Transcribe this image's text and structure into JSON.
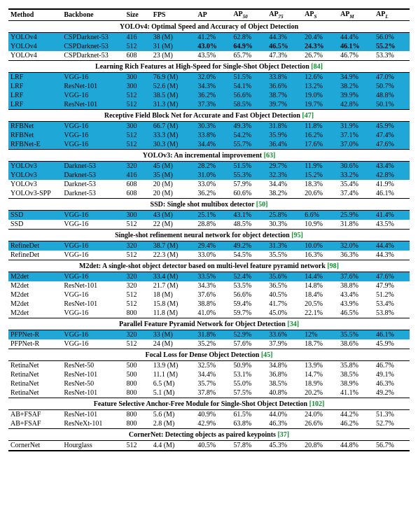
{
  "columns": [
    "Method",
    "Backbone",
    "Size",
    "FPS",
    "AP",
    "AP50",
    "AP75",
    "APS",
    "APM",
    "APL"
  ],
  "column_subscripts": [
    "",
    "",
    "",
    "",
    "",
    "50",
    "75",
    "S",
    "M",
    "L"
  ],
  "highlight_color": "#1fa7d8",
  "citation_color": "#0a922d",
  "sections": [
    {
      "title": "YOLOv4: Optimal Speed and Accuracy of Object Detection",
      "citation": "",
      "rows": [
        {
          "hl": true,
          "bold_cells": [],
          "cells": [
            "YOLOv4",
            "CSPDarknet-53",
            "416",
            "38 (M)",
            "41.2%",
            "62.8%",
            "44.3%",
            "20.4%",
            "44.4%",
            "56.0%"
          ]
        },
        {
          "hl": true,
          "bold_cells": [
            4,
            5,
            6,
            7,
            8,
            9
          ],
          "cells": [
            "YOLOv4",
            "CSPDarknet-53",
            "512",
            "31 (M)",
            "43.0%",
            "64.9%",
            "46.5%",
            "24.3%",
            "46.1%",
            "55.2%"
          ]
        },
        {
          "hl": false,
          "bold_cells": [],
          "cells": [
            "YOLOv4",
            "CSPDarknet-53",
            "608",
            "23 (M)",
            "43.5%",
            "65.7%",
            "47.3%",
            "26.7%",
            "46.7%",
            "53.3%"
          ]
        }
      ]
    },
    {
      "title": "Learning Rich Features at High-Speed for Single-Shot Object Detection",
      "citation": "[84]",
      "rows": [
        {
          "hl": true,
          "bold_cells": [],
          "cells": [
            "LRF",
            "VGG-16",
            "300",
            "76.9 (M)",
            "32.0%",
            "51.5%",
            "33.8%",
            "12.6%",
            "34.9%",
            "47.0%"
          ]
        },
        {
          "hl": true,
          "bold_cells": [],
          "cells": [
            "LRF",
            "ResNet-101",
            "300",
            "52.6 (M)",
            "34.3%",
            "54.1%",
            "36.6%",
            "13.2%",
            "38.2%",
            "50.7%"
          ]
        },
        {
          "hl": true,
          "bold_cells": [],
          "cells": [
            "LRF",
            "VGG-16",
            "512",
            "38.5 (M)",
            "36.2%",
            "56.6%",
            "38.7%",
            "19.0%",
            "39.9%",
            "48.8%"
          ]
        },
        {
          "hl": true,
          "bold_cells": [],
          "cells": [
            "LRF",
            "ResNet-101",
            "512",
            "31.3 (M)",
            "37.3%",
            "58.5%",
            "39.7%",
            "19.7%",
            "42.8%",
            "50.1%"
          ]
        }
      ]
    },
    {
      "title": "Receptive Field Block Net for Accurate and Fast Object Detection",
      "citation": "[47]",
      "rows": [
        {
          "hl": true,
          "bold_cells": [],
          "cells": [
            "RFBNet",
            "VGG-16",
            "300",
            "66.7 (M)",
            "30.3%",
            "49.3%",
            "31.8%",
            "11.8%",
            "31.9%",
            "45.9%"
          ]
        },
        {
          "hl": true,
          "bold_cells": [],
          "cells": [
            "RFBNet",
            "VGG-16",
            "512",
            "33.3 (M)",
            "33.8%",
            "54.2%",
            "35.9%",
            "16.2%",
            "37.1%",
            "47.4%"
          ]
        },
        {
          "hl": true,
          "bold_cells": [],
          "cells": [
            "RFBNet-E",
            "VGG-16",
            "512",
            "30.3 (M)",
            "34.4%",
            "55.7%",
            "36.4%",
            "17.6%",
            "37.0%",
            "47.6%"
          ]
        }
      ]
    },
    {
      "title": "YOLOv3: An incremental improvement",
      "citation": "[63]",
      "rows": [
        {
          "hl": true,
          "bold_cells": [],
          "cells": [
            "YOLOv3",
            "Darknet-53",
            "320",
            "45 (M)",
            "28.2%",
            "51.5%",
            "29.7%",
            "11.9%",
            "30.6%",
            "43.4%"
          ]
        },
        {
          "hl": true,
          "bold_cells": [],
          "cells": [
            "YOLOv3",
            "Darknet-53",
            "416",
            "35 (M)",
            "31.0%",
            "55.3%",
            "32.3%",
            "15.2%",
            "33.2%",
            "42.8%"
          ]
        },
        {
          "hl": false,
          "bold_cells": [],
          "cells": [
            "YOLOv3",
            "Darknet-53",
            "608",
            "20 (M)",
            "33.0%",
            "57.9%",
            "34.4%",
            "18.3%",
            "35.4%",
            "41.9%"
          ]
        },
        {
          "hl": false,
          "bold_cells": [],
          "cells": [
            "YOLOv3-SPP",
            "Darknet-53",
            "608",
            "20 (M)",
            "36.2%",
            "60.6%",
            "38.2%",
            "20.6%",
            "37.4%",
            "46.1%"
          ]
        }
      ]
    },
    {
      "title": "SSD: Single shot multibox detector",
      "citation": "[50]",
      "rows": [
        {
          "hl": true,
          "bold_cells": [],
          "cells": [
            "SSD",
            "VGG-16",
            "300",
            "43 (M)",
            "25.1%",
            "43.1%",
            "25.8%",
            "6.6%",
            "25.9%",
            "41.4%"
          ]
        },
        {
          "hl": false,
          "bold_cells": [],
          "cells": [
            "SSD",
            "VGG-16",
            "512",
            "22 (M)",
            "28.8%",
            "48.5%",
            "30.3%",
            "10.9%",
            "31.8%",
            "43.5%"
          ]
        }
      ]
    },
    {
      "title": "Single-shot refinement neural network for object detection",
      "citation": "[95]",
      "rows": [
        {
          "hl": true,
          "bold_cells": [],
          "cells": [
            "RefineDet",
            "VGG-16",
            "320",
            "38.7 (M)",
            "29.4%",
            "49.2%",
            "31.3%",
            "10.0%",
            "32.0%",
            "44.4%"
          ]
        },
        {
          "hl": false,
          "bold_cells": [],
          "cells": [
            "RefineDet",
            "VGG-16",
            "512",
            "22.3 (M)",
            "33.0%",
            "54.5%",
            "35.5%",
            "16.3%",
            "36.3%",
            "44.3%"
          ]
        }
      ]
    },
    {
      "title": "M2det: A single-shot object detector based on multi-level feature pyramid network",
      "citation": "[98]",
      "rows": [
        {
          "hl": true,
          "bold_cells": [],
          "cells": [
            "M2det",
            "VGG-16",
            "320",
            "33.4 (M)",
            "33.5%",
            "52.4%",
            "35.6%",
            "14.4%",
            "37.6%",
            "47.6%"
          ]
        },
        {
          "hl": false,
          "bold_cells": [],
          "cells": [
            "M2det",
            "ResNet-101",
            "320",
            "21.7 (M)",
            "34.3%",
            "53.5%",
            "36.5%",
            "14.8%",
            "38.8%",
            "47.9%"
          ]
        },
        {
          "hl": false,
          "bold_cells": [],
          "cells": [
            "M2det",
            "VGG-16",
            "512",
            "18 (M)",
            "37.6%",
            "56.6%",
            "40.5%",
            "18.4%",
            "43.4%",
            "51.2%"
          ]
        },
        {
          "hl": false,
          "bold_cells": [],
          "cells": [
            "M2det",
            "ResNet-101",
            "512",
            "15.8 (M)",
            "38.8%",
            "59.4%",
            "41.7%",
            "20.5%",
            "43.9%",
            "53.4%"
          ]
        },
        {
          "hl": false,
          "bold_cells": [],
          "cells": [
            "M2det",
            "VGG-16",
            "800",
            "11.8 (M)",
            "41.0%",
            "59.7%",
            "45.0%",
            "22.1%",
            "46.5%",
            "53.8%"
          ]
        }
      ]
    },
    {
      "title": "Parallel Feature Pyramid Network for Object Detection",
      "citation": "[34]",
      "rows": [
        {
          "hl": true,
          "bold_cells": [],
          "cells": [
            "PFPNet-R",
            "VGG-16",
            "320",
            "33 (M)",
            "31.8%",
            "52.9%",
            "33.6%",
            "12%",
            "35.5%",
            "46.1%"
          ]
        },
        {
          "hl": false,
          "bold_cells": [],
          "cells": [
            "PFPNet-R",
            "VGG-16",
            "512",
            "24 (M)",
            "35.2%",
            "57.6%",
            "37.9%",
            "18.7%",
            "38.6%",
            "45.9%"
          ]
        }
      ]
    },
    {
      "title": "Focal Loss for Dense Object Detection",
      "citation": "[45]",
      "rows": [
        {
          "hl": false,
          "bold_cells": [],
          "cells": [
            "RetinaNet",
            "ResNet-50",
            "500",
            "13.9 (M)",
            "32.5%",
            "50.9%",
            "34.8%",
            "13.9%",
            "35.8%",
            "46.7%"
          ]
        },
        {
          "hl": false,
          "bold_cells": [],
          "cells": [
            "RetinaNet",
            "ResNet-101",
            "500",
            "11.1 (M)",
            "34.4%",
            "53.1%",
            "36.8%",
            "14.7%",
            "38.5%",
            "49.1%"
          ]
        },
        {
          "hl": false,
          "bold_cells": [],
          "cells": [
            "RetinaNet",
            "ResNet-50",
            "800",
            "6.5 (M)",
            "35.7%",
            "55.0%",
            "38.5%",
            "18.9%",
            "38.9%",
            "46.3%"
          ]
        },
        {
          "hl": false,
          "bold_cells": [],
          "cells": [
            "RetinaNet",
            "ResNet-101",
            "800",
            "5.1 (M)",
            "37.8%",
            "57.5%",
            "40.8%",
            "20.2%",
            "41.1%",
            "49.2%"
          ]
        }
      ]
    },
    {
      "title": "Feature Selective Anchor-Free Module for Single-Shot Object Detection",
      "citation": "[102]",
      "rows": [
        {
          "hl": false,
          "bold_cells": [],
          "cells": [
            "AB+FSAF",
            "ResNet-101",
            "800",
            "5.6 (M)",
            "40.9%",
            "61.5%",
            "44.0%",
            "24.0%",
            "44.2%",
            "51.3%"
          ]
        },
        {
          "hl": false,
          "bold_cells": [],
          "cells": [
            "AB+FSAF",
            "ResNeXt-101",
            "800",
            "2.8 (M)",
            "42.9%",
            "63.8%",
            "46.3%",
            "26.6%",
            "46.2%",
            "52.7%"
          ]
        }
      ]
    },
    {
      "title": "CornerNet: Detecting objects as paired keypoints",
      "citation": "[37]",
      "rows": [
        {
          "hl": false,
          "bold_cells": [],
          "cells": [
            "CornerNet",
            "Hourglass",
            "512",
            "4.4 (M)",
            "40.5%",
            "57.8%",
            "45.3%",
            "20.8%",
            "44.8%",
            "56.7%"
          ]
        }
      ]
    }
  ]
}
